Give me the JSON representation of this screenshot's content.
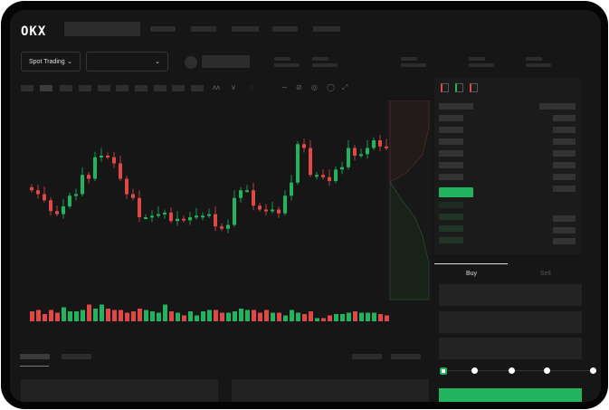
{
  "brand": {
    "logo": "OKX"
  },
  "toolbar": {
    "market_type": "Spot Trading",
    "pair_select": ""
  },
  "trade": {
    "tabs": [
      {
        "label": "Buy",
        "active": true
      },
      {
        "label": "Sell",
        "active": false
      }
    ],
    "leverage_steps": 5
  },
  "colors": {
    "up": "#22b35e",
    "down": "#e04848",
    "background": "#161616",
    "accent": "#22b35e"
  },
  "icons": [
    "logo",
    "chevron-down-icon",
    "chart-tool-icons",
    "orderbook-layout-icons"
  ],
  "chart_data": {
    "type": "candlestick",
    "close": [
      95,
      90,
      82,
      68,
      64,
      74,
      88,
      90,
      115,
      110,
      138,
      140,
      138,
      130,
      110,
      90,
      85,
      60,
      60,
      62,
      64,
      66,
      55,
      58,
      56,
      60,
      62,
      62,
      64,
      48,
      45,
      50,
      85,
      95,
      95,
      75,
      70,
      68,
      70,
      65,
      88,
      105,
      155,
      150,
      115,
      115,
      112,
      107,
      122,
      125,
      150,
      140,
      142,
      150,
      160,
      152,
      150
    ],
    "volume": [
      6,
      7,
      4,
      7,
      5,
      9,
      6,
      6,
      7,
      11,
      8,
      11,
      8,
      7,
      7,
      5,
      6,
      8,
      7,
      6,
      5,
      11,
      6,
      5,
      3,
      6,
      3,
      6,
      7,
      7,
      5,
      5,
      6,
      8,
      7,
      7,
      5,
      7,
      5,
      5,
      3,
      7,
      5,
      4,
      6,
      1,
      1,
      3,
      4,
      4,
      5,
      6,
      5,
      5,
      5,
      4,
      3
    ]
  }
}
